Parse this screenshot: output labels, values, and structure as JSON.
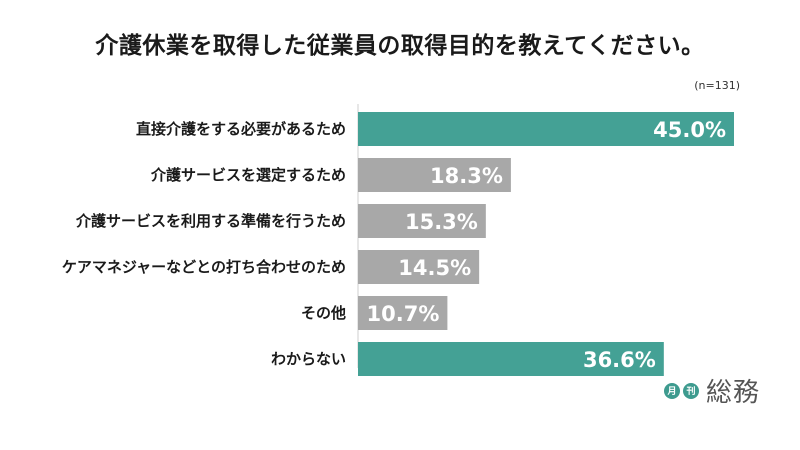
{
  "chart_data": {
    "type": "bar",
    "orientation": "horizontal",
    "title": "介護休業を取得した従業員の取得目的を教えてください。",
    "note": "(n=131)",
    "categories": [
      "直接介護をする必要があるため",
      "介護サービスを選定するため",
      "介護サービスを利用する準備を行うため",
      "ケアマネジャーなどとの打ち合わせのため",
      "その他",
      "わからない"
    ],
    "values": [
      45.0,
      18.3,
      15.3,
      14.5,
      10.7,
      36.6
    ],
    "value_labels": [
      "45.0%",
      "18.3%",
      "15.3%",
      "14.5%",
      "10.7%",
      "36.6%"
    ],
    "highlight": [
      true,
      false,
      false,
      false,
      false,
      true
    ],
    "colors": {
      "highlight": "#44a195",
      "default": "#a8a8a8"
    },
    "xlim": [
      0,
      45.0
    ],
    "grid": false,
    "legend": "none"
  },
  "brand": {
    "badge_1": "月",
    "badge_2": "刊",
    "name": "総務"
  }
}
